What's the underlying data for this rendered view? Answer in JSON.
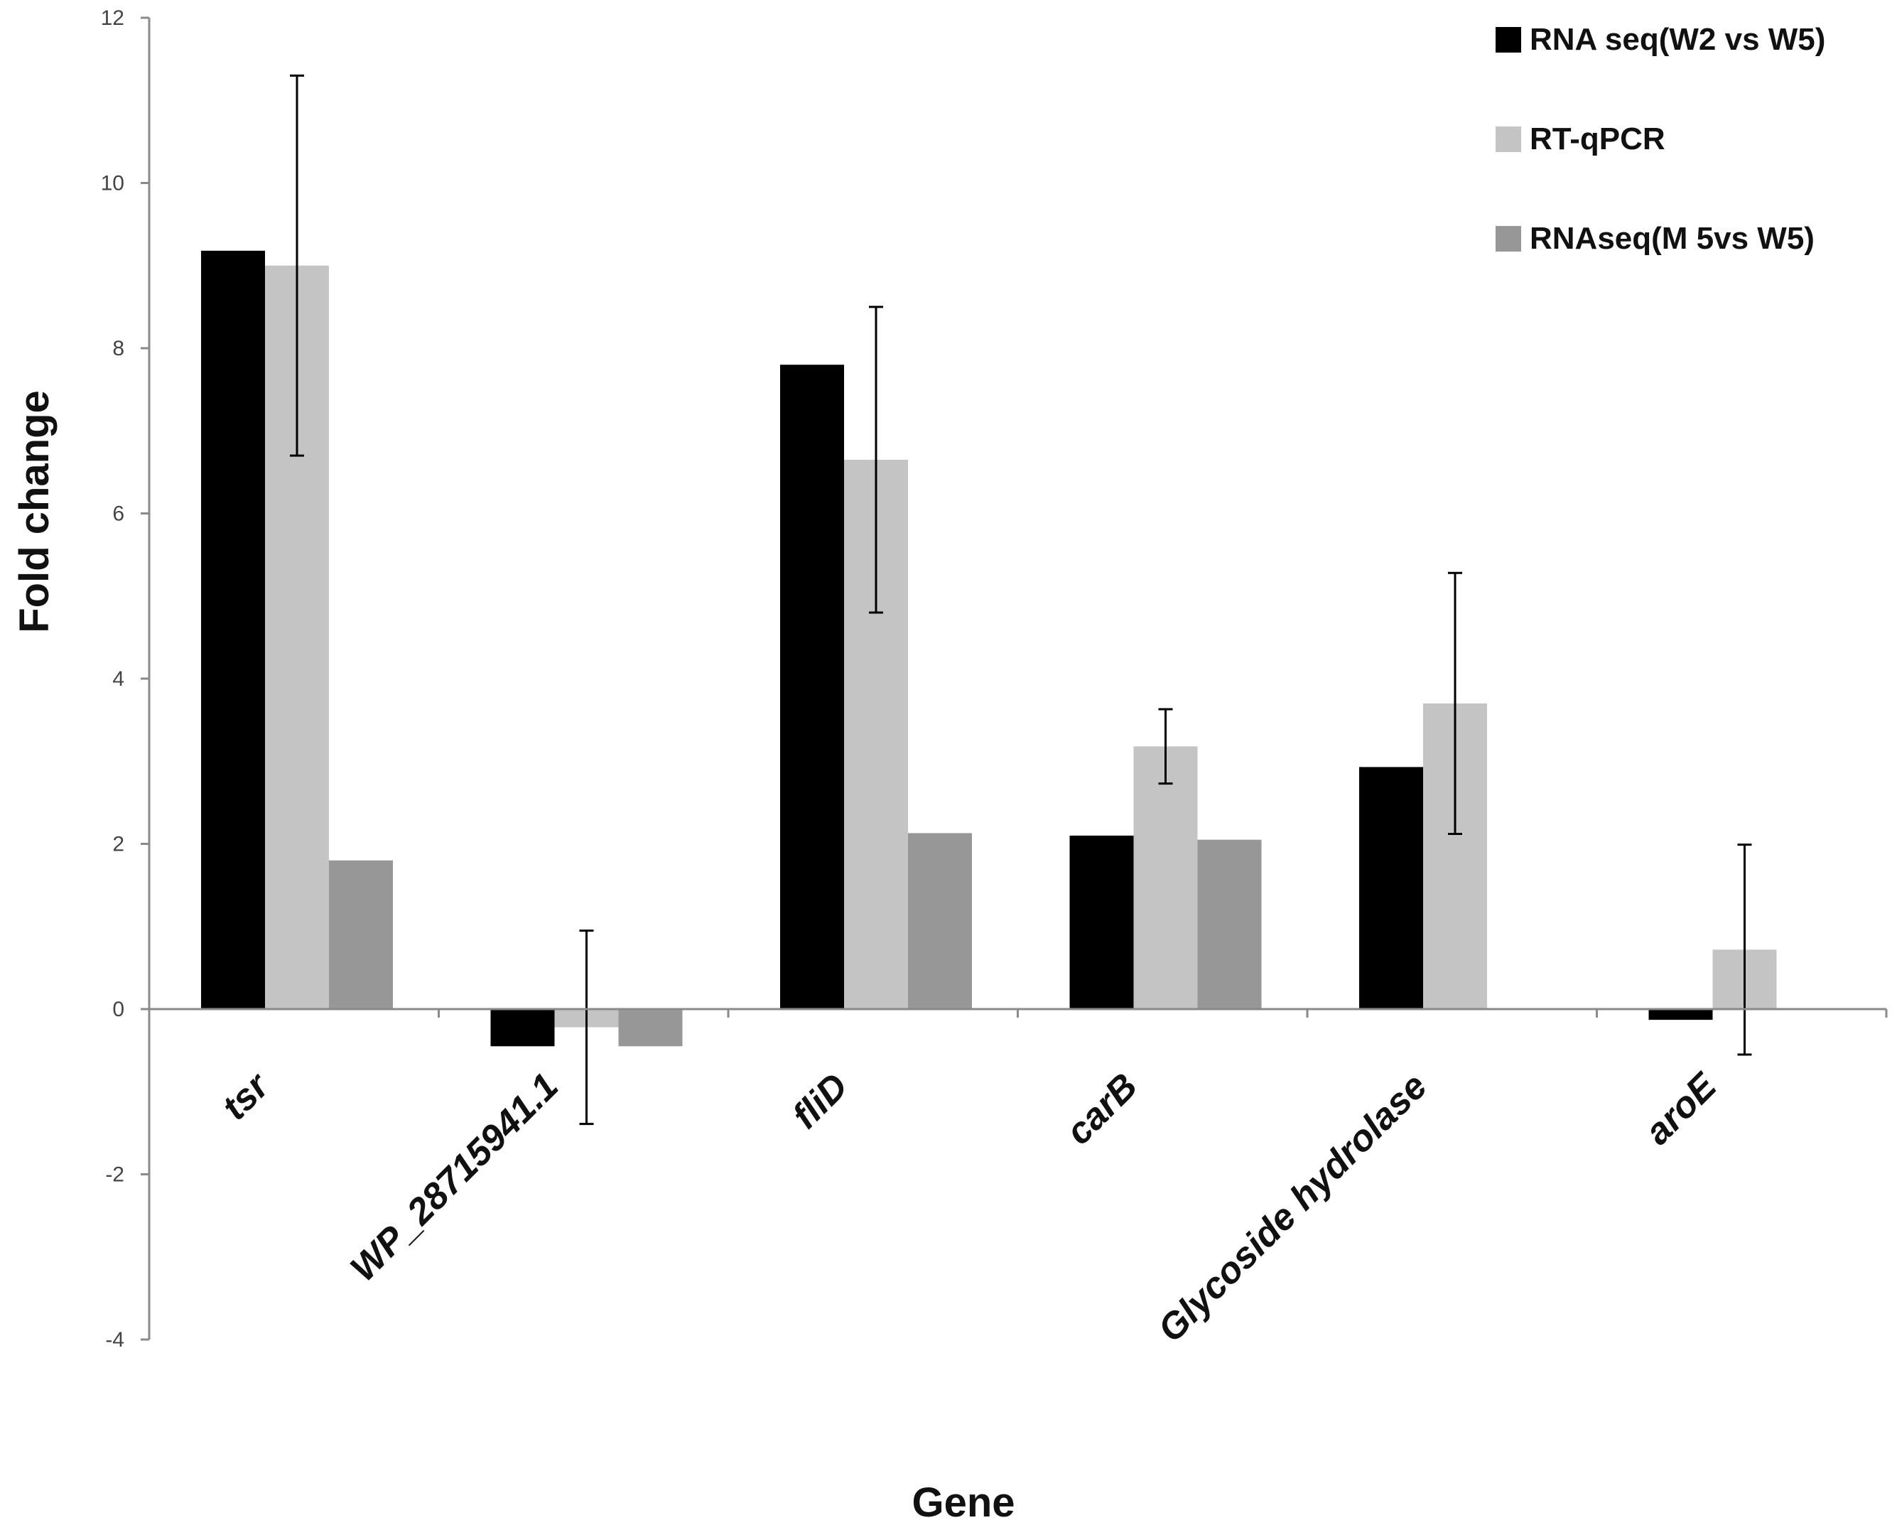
{
  "chart_data": {
    "type": "bar",
    "title": "",
    "xlabel": "Gene",
    "ylabel": "Fold change",
    "ylim": [
      -4,
      12
    ],
    "yticks": [
      -4,
      -2,
      0,
      2,
      4,
      6,
      8,
      10,
      12
    ],
    "ytick_labels": [
      "-4",
      "-2",
      "0",
      "2",
      "4",
      "6",
      "8",
      "10",
      "12"
    ],
    "grid": false,
    "legend_position": "top-right",
    "categories": [
      "tsr",
      "WP_28715941.1",
      "fliD",
      "carB",
      "Glycoside hydrolase",
      "aroE"
    ],
    "series": [
      {
        "name": "RNA seq(W2 vs W5)",
        "color": "#000000",
        "values": [
          9.18,
          -0.45,
          7.8,
          2.1,
          2.93,
          -0.13
        ],
        "errors": null
      },
      {
        "name": "RT-qPCR",
        "color": "#c4c4c4",
        "values": [
          9.0,
          -0.22,
          6.65,
          3.18,
          3.7,
          0.72
        ],
        "errors": [
          2.3,
          1.17,
          1.85,
          0.45,
          1.58,
          1.27
        ]
      },
      {
        "name": "RNAseq(M 5vs W5)",
        "color": "#979797",
        "values": [
          1.8,
          -0.45,
          2.13,
          2.05,
          null,
          null
        ],
        "errors": null
      }
    ]
  }
}
